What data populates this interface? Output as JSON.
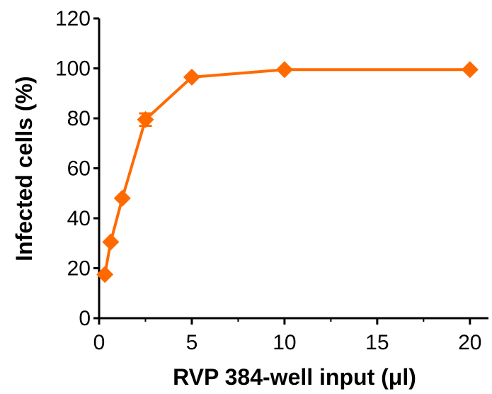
{
  "chart_data": {
    "type": "line",
    "xlabel": "RVP 384-well input (μl)",
    "ylabel": "Infected cells (%)",
    "xlim": [
      0,
      21
    ],
    "ylim": [
      0,
      120
    ],
    "x_ticks": [
      0,
      5,
      10,
      15,
      20
    ],
    "x_tick_labels": [
      "0",
      "5",
      "10",
      "15",
      "20"
    ],
    "y_ticks": [
      0,
      20,
      40,
      60,
      80,
      100,
      120
    ],
    "y_tick_labels": [
      "0",
      "20",
      "40",
      "60",
      "80",
      "100",
      "120"
    ],
    "grid": false,
    "marker": "diamond",
    "color": "#FF6A00",
    "series": [
      {
        "x": [
          0.3125,
          0.625,
          1.25,
          2.5,
          5,
          10,
          20
        ],
        "y": [
          17.5,
          30.5,
          48,
          79.5,
          96.5,
          99.5,
          99.5
        ],
        "error": [
          0,
          0,
          0,
          2.5,
          0,
          0,
          0
        ]
      }
    ]
  }
}
